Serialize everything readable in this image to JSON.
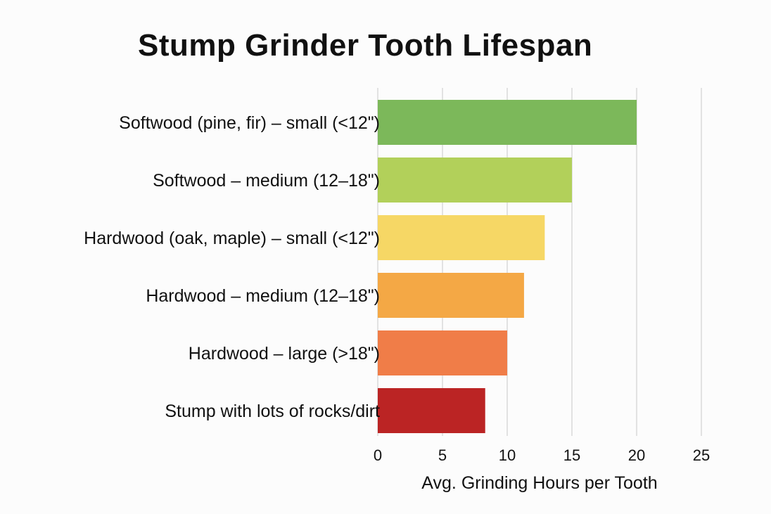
{
  "chart_data": {
    "type": "bar",
    "orientation": "horizontal",
    "title": "Stump Grinder Tooth Lifespan",
    "xlabel": "Avg. Grinding Hours per Tooth",
    "ylabel": "",
    "xlim": [
      0,
      25
    ],
    "xticks": [
      0,
      5,
      10,
      15,
      20,
      25
    ],
    "grid": true,
    "categories": [
      "Softwood (pine, fir) – small (<12\")",
      "Softwood – medium (12–18\")",
      "Hardwood (oak, maple) – small (<12\")",
      "Hardwood – medium (12–18\")",
      "Hardwood – large (>18\")",
      "Stump with lots of rocks/dirt"
    ],
    "values": [
      20,
      15,
      12.9,
      11.3,
      10,
      8.3
    ],
    "colors": [
      "#7cb85a",
      "#b2d05a",
      "#f6d765",
      "#f4a845",
      "#f07d48",
      "#bb2424"
    ]
  }
}
